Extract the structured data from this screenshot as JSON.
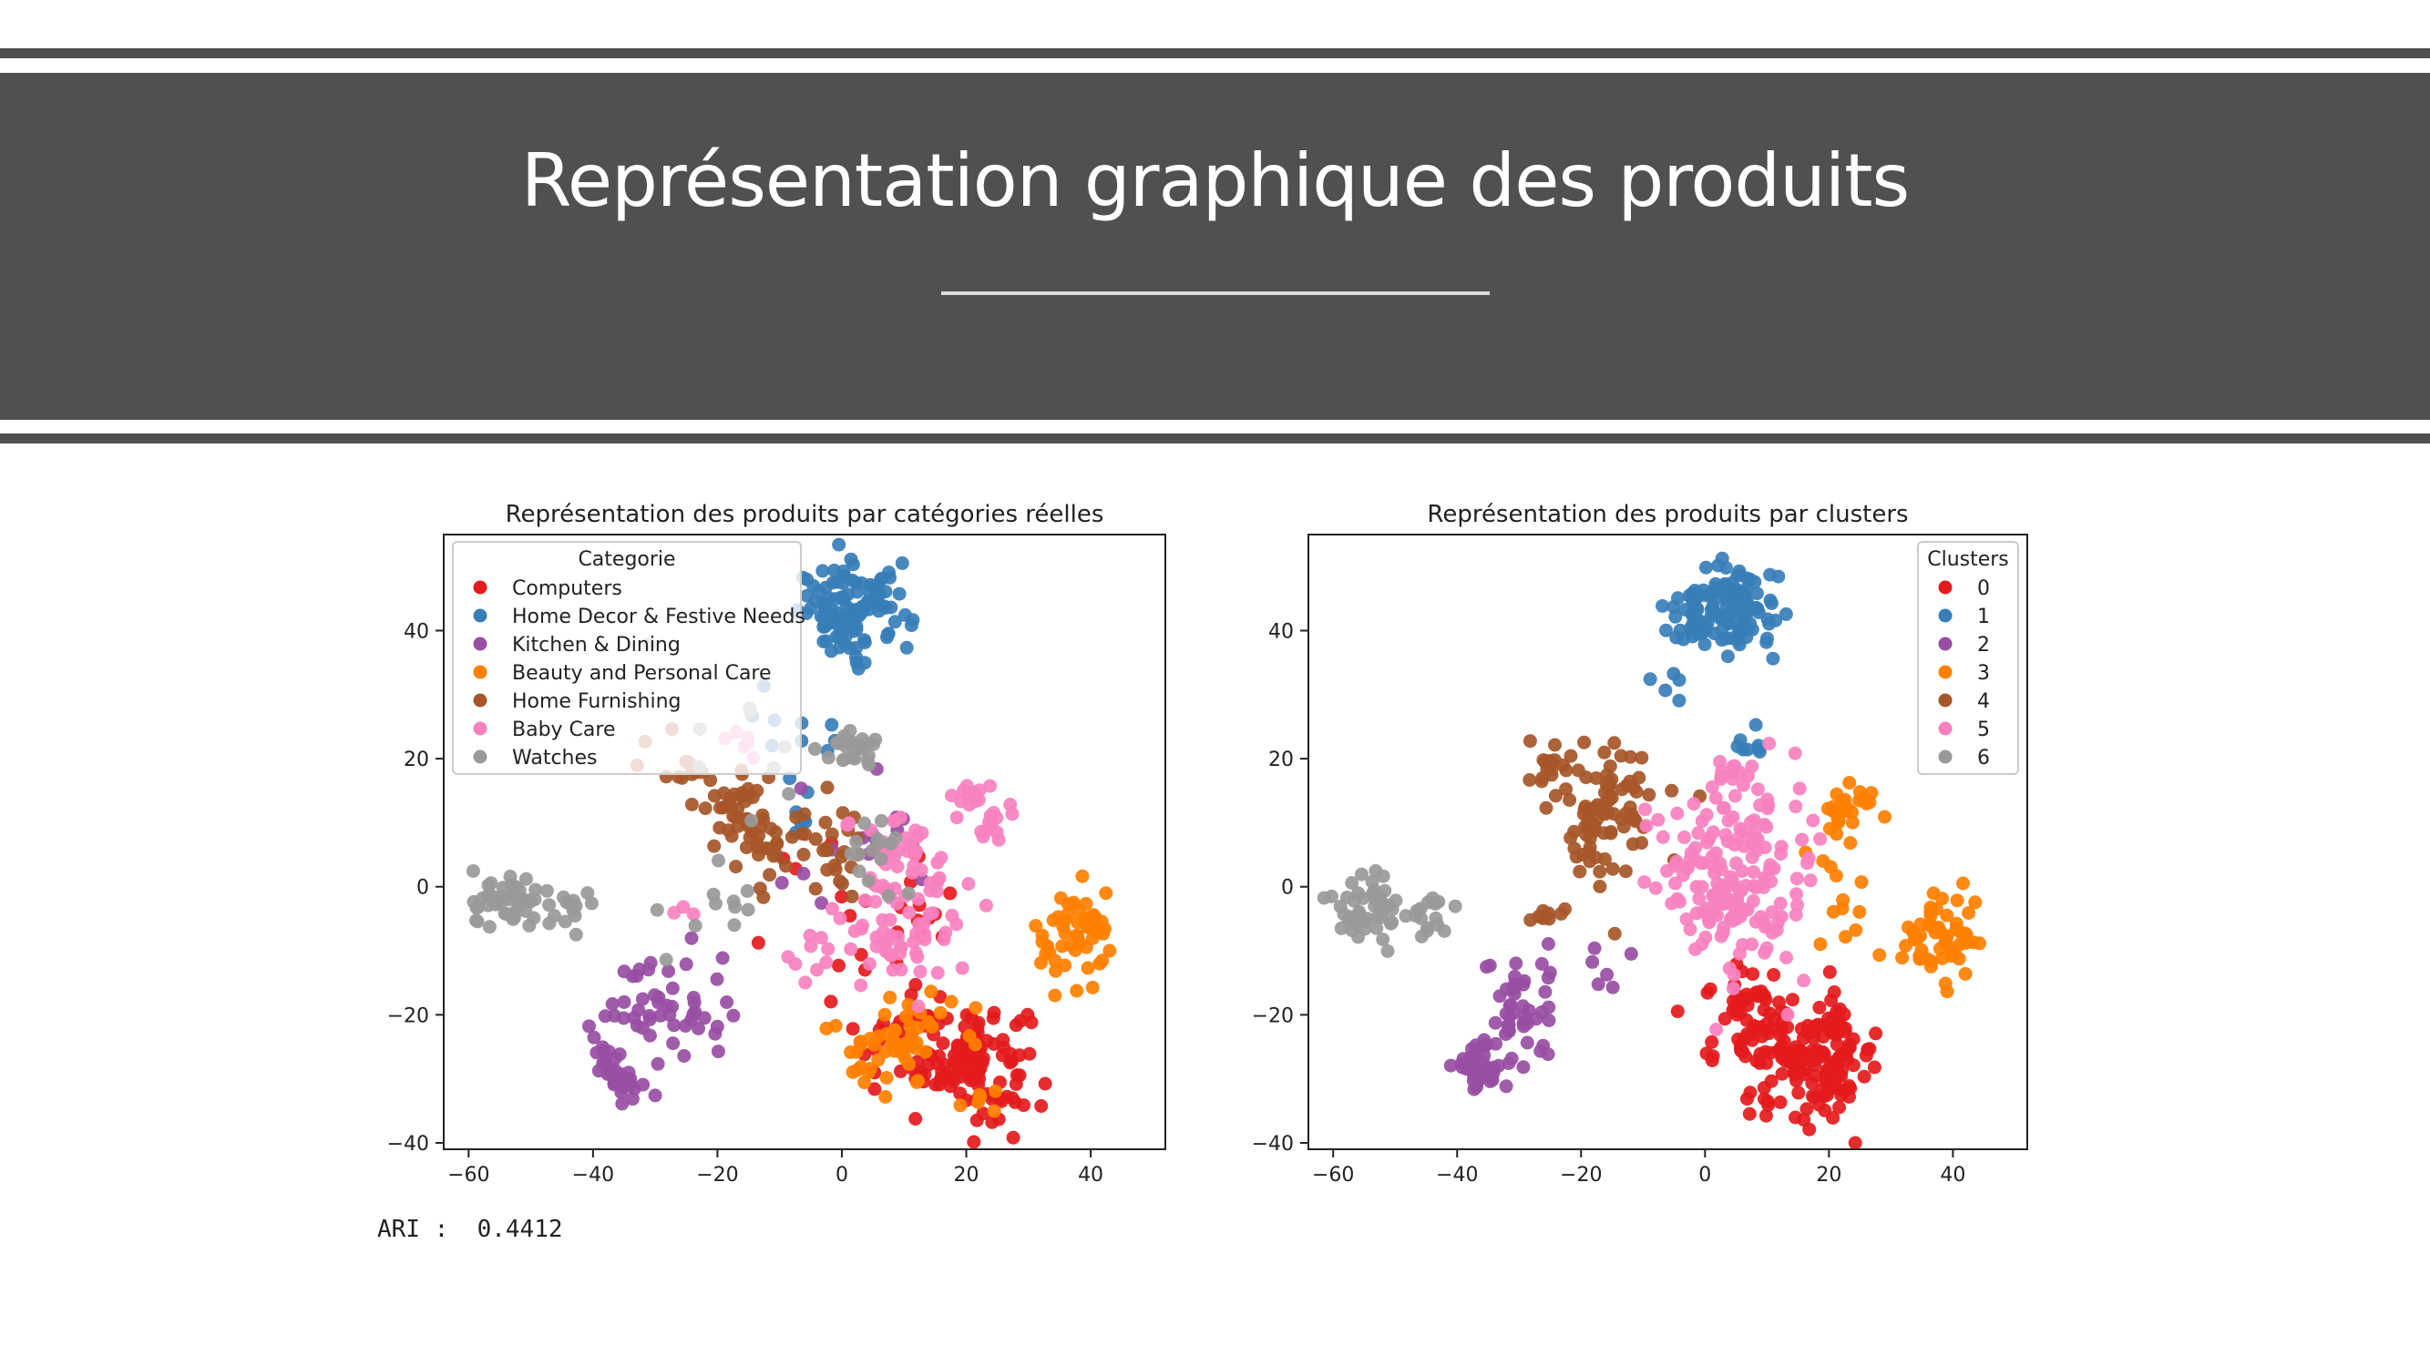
{
  "slide": {
    "title": "Représentation graphique des produits",
    "ari_label": "ARI :",
    "ari_value": "0.4412"
  },
  "colors": {
    "band": "#505050",
    "palette": [
      "#e41a1c",
      "#377eb8",
      "#984ea3",
      "#ff7f00",
      "#a65628",
      "#f781bf",
      "#999999"
    ]
  },
  "chart_data": [
    {
      "type": "scatter",
      "title": "Représentation des produits par catégories réelles",
      "xlabel": "",
      "ylabel": "",
      "xlim": [
        -64,
        52
      ],
      "ylim": [
        -41,
        55
      ],
      "xticks": [
        -60,
        -40,
        -20,
        0,
        20,
        40
      ],
      "yticks": [
        -40,
        -20,
        0,
        20,
        40
      ],
      "xtick_labels": [
        "−60",
        "−40",
        "−20",
        "0",
        "20",
        "40"
      ],
      "ytick_labels": [
        "−40",
        "−20",
        "0",
        "20",
        "40"
      ],
      "legend": {
        "title": "Categorie",
        "placement": "upper left",
        "entries": [
          "Computers",
          "Home Decor & Festive Needs",
          "Kitchen & Dining",
          "Beauty and Personal Care",
          "Home Furnishing",
          "Baby Care",
          "Watches"
        ]
      },
      "series": [
        {
          "name": "Computers",
          "color": "#e41a1c",
          "clusters": [
            {
              "cx": 21,
              "cy": -27,
              "sx": 4.5,
              "sy": 4.5,
              "n": 110
            },
            {
              "cx": 10,
              "cy": -24,
              "sx": 4,
              "sy": 4,
              "n": 30
            },
            {
              "cx": 12,
              "cy": -2,
              "sx": 3,
              "sy": 3,
              "n": 10
            },
            {
              "cx": 0,
              "cy": -8,
              "sx": 8,
              "sy": 8,
              "n": 15
            }
          ]
        },
        {
          "name": "Home Decor & Festive Needs",
          "color": "#377eb8",
          "clusters": [
            {
              "cx": 2,
              "cy": 43,
              "sx": 4.5,
              "sy": 3.5,
              "n": 115
            },
            {
              "cx": -8,
              "cy": 25,
              "sx": 3,
              "sy": 5,
              "n": 10
            },
            {
              "cx": -5,
              "cy": 13,
              "sx": 2,
              "sy": 3,
              "n": 6
            }
          ]
        },
        {
          "name": "Kitchen & Dining",
          "color": "#984ea3",
          "clusters": [
            {
              "cx": -36,
              "cy": -29,
              "sx": 2,
              "sy": 2,
              "n": 35
            },
            {
              "cx": -32,
              "cy": -18,
              "sx": 3,
              "sy": 3,
              "n": 20
            },
            {
              "cx": -26,
              "cy": -19,
              "sx": 4,
              "sy": 5,
              "n": 30
            },
            {
              "cx": 3,
              "cy": 3,
              "sx": 8,
              "sy": 6,
              "n": 15
            }
          ]
        },
        {
          "name": "Beauty and Personal Care",
          "color": "#ff7f00",
          "clusters": [
            {
              "cx": 38,
              "cy": -8,
              "sx": 3.5,
              "sy": 4,
              "n": 50
            },
            {
              "cx": 8,
              "cy": -24,
              "sx": 5,
              "sy": 4.5,
              "n": 55
            },
            {
              "cx": 22,
              "cy": -33,
              "sx": 2,
              "sy": 2,
              "n": 6
            }
          ]
        },
        {
          "name": "Home Furnishing",
          "color": "#a65628",
          "clusters": [
            {
              "cx": -17,
              "cy": 13,
              "sx": 3,
              "sy": 3,
              "n": 35
            },
            {
              "cx": -13,
              "cy": 7,
              "sx": 3,
              "sy": 3.5,
              "n": 25
            },
            {
              "cx": -1,
              "cy": 7,
              "sx": 3,
              "sy": 4,
              "n": 25
            },
            {
              "cx": -25,
              "cy": 19,
              "sx": 4,
              "sy": 2,
              "n": 12
            }
          ]
        },
        {
          "name": "Baby Care",
          "color": "#f781bf",
          "clusters": [
            {
              "cx": 10,
              "cy": -2,
              "sx": 5,
              "sy": 8,
              "n": 90
            },
            {
              "cx": 23,
              "cy": 12,
              "sx": 2.5,
              "sy": 3,
              "n": 25
            },
            {
              "cx": -17,
              "cy": 21,
              "sx": 2,
              "sy": 1,
              "n": 6
            },
            {
              "cx": -3,
              "cy": -9,
              "sx": 3,
              "sy": 3,
              "n": 12
            },
            {
              "cx": -25,
              "cy": -4,
              "sx": 2,
              "sy": 2,
              "n": 3
            }
          ]
        },
        {
          "name": "Watches",
          "color": "#999999",
          "clusters": [
            {
              "cx": -54,
              "cy": -3,
              "sx": 3,
              "sy": 2.5,
              "n": 45
            },
            {
              "cx": -44,
              "cy": -4,
              "sx": 2,
              "sy": 2,
              "n": 15
            },
            {
              "cx": 2,
              "cy": 22,
              "sx": 2,
              "sy": 1.5,
              "n": 25
            },
            {
              "cx": 4,
              "cy": 5,
              "sx": 3,
              "sy": 3,
              "n": 15
            },
            {
              "cx": -20,
              "cy": -6,
              "sx": 6,
              "sy": 4,
              "n": 10
            },
            {
              "cx": -12,
              "cy": 22,
              "sx": 6,
              "sy": 6,
              "n": 10
            }
          ]
        }
      ]
    },
    {
      "type": "scatter",
      "title": "Représentation des produits par clusters",
      "xlabel": "",
      "ylabel": "",
      "xlim": [
        -64,
        52
      ],
      "ylim": [
        -41,
        55
      ],
      "xticks": [
        -60,
        -40,
        -20,
        0,
        20,
        40
      ],
      "yticks": [
        -40,
        -20,
        0,
        20,
        40
      ],
      "xtick_labels": [
        "−60",
        "−40",
        "−20",
        "0",
        "20",
        "40"
      ],
      "ytick_labels": [
        "−40",
        "−20",
        "0",
        "20",
        "40"
      ],
      "legend": {
        "title": "Clusters",
        "placement": "upper right",
        "entries": [
          "0",
          "1",
          "2",
          "3",
          "4",
          "5",
          "6"
        ]
      },
      "series": [
        {
          "name": "0",
          "color": "#e41a1c",
          "clusters": [
            {
              "cx": 18,
              "cy": -27,
              "sx": 5,
              "sy": 4.5,
              "n": 140
            },
            {
              "cx": 8,
              "cy": -20,
              "sx": 4,
              "sy": 4,
              "n": 60
            }
          ]
        },
        {
          "name": "1",
          "color": "#377eb8",
          "clusters": [
            {
              "cx": 2,
              "cy": 43,
              "sx": 4.5,
              "sy": 3.5,
              "n": 130
            },
            {
              "cx": 7,
              "cy": 22,
              "sx": 2,
              "sy": 1,
              "n": 8
            },
            {
              "cx": -7,
              "cy": 30,
              "sx": 2,
              "sy": 2,
              "n": 5
            }
          ]
        },
        {
          "name": "2",
          "color": "#984ea3",
          "clusters": [
            {
              "cx": -36,
              "cy": -28,
              "sx": 2,
              "sy": 2,
              "n": 40
            },
            {
              "cx": -30,
              "cy": -19,
              "sx": 3.5,
              "sy": 4,
              "n": 45
            },
            {
              "cx": -15,
              "cy": -14,
              "sx": 2,
              "sy": 2,
              "n": 6
            }
          ]
        },
        {
          "name": "3",
          "color": "#ff7f00",
          "clusters": [
            {
              "cx": 38,
              "cy": -8,
              "sx": 3.5,
              "sy": 4,
              "n": 55
            },
            {
              "cx": 23,
              "cy": 12,
              "sx": 2,
              "sy": 3,
              "n": 25
            },
            {
              "cx": 20,
              "cy": -2,
              "sx": 3,
              "sy": 5,
              "n": 12
            }
          ]
        },
        {
          "name": "4",
          "color": "#a65628",
          "clusters": [
            {
              "cx": -16,
              "cy": 11,
              "sx": 4,
              "sy": 5,
              "n": 85
            },
            {
              "cx": -26,
              "cy": 19,
              "sx": 1.5,
              "sy": 1.5,
              "n": 15
            },
            {
              "cx": -25,
              "cy": -4,
              "sx": 1.5,
              "sy": 1.5,
              "n": 8
            }
          ]
        },
        {
          "name": "5",
          "color": "#f781bf",
          "clusters": [
            {
              "cx": 5,
              "cy": 2,
              "sx": 6,
              "sy": 7.5,
              "n": 170
            },
            {
              "cx": 3,
              "cy": 18,
              "sx": 2,
              "sy": 1,
              "n": 10
            }
          ]
        },
        {
          "name": "6",
          "color": "#999999",
          "clusters": [
            {
              "cx": -54,
              "cy": -3,
              "sx": 3,
              "sy": 2.5,
              "n": 45
            },
            {
              "cx": -44,
              "cy": -4,
              "sx": 2,
              "sy": 2,
              "n": 15
            }
          ]
        }
      ]
    }
  ]
}
